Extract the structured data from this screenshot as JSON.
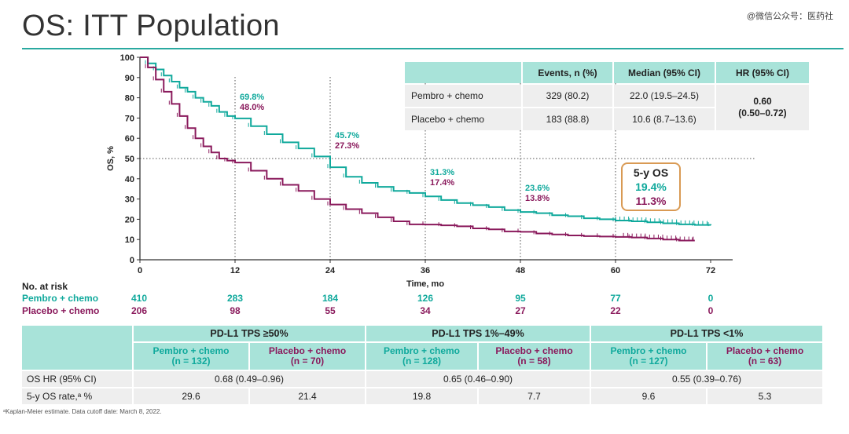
{
  "page": {
    "title": "OS: ITT Population",
    "watermark": "@微信公众号：医药社",
    "footnote": "ᵃKaplan-Meier estimate.  Data cutoff date: March 8, 2022."
  },
  "chart_data": {
    "type": "line",
    "xlabel": "Time, mo",
    "ylabel": "OS, %",
    "xlim": [
      0,
      72
    ],
    "ylim": [
      0,
      100
    ],
    "xticks": [
      0,
      12,
      24,
      36,
      48,
      60,
      72
    ],
    "yticks": [
      0,
      10,
      20,
      30,
      40,
      50,
      60,
      70,
      80,
      90,
      100
    ],
    "reference_line_y": 50,
    "series": [
      {
        "name": "Pembro + chemo",
        "color": "#10a99c",
        "x": [
          0,
          1,
          2,
          3,
          4,
          5,
          6,
          7,
          8,
          9,
          10,
          11,
          12,
          14,
          16,
          18,
          20,
          22,
          24,
          26,
          28,
          30,
          32,
          34,
          36,
          38,
          40,
          42,
          44,
          46,
          48,
          50,
          52,
          54,
          56,
          58,
          60,
          62,
          64,
          66,
          68,
          70,
          72
        ],
        "y": [
          100,
          97,
          94,
          91,
          88,
          85,
          83,
          80,
          78,
          76,
          73,
          71,
          69.8,
          66,
          62,
          58,
          55,
          51,
          45.7,
          41,
          38,
          36,
          34,
          33,
          31.3,
          29.5,
          28,
          27,
          26,
          24.5,
          23.6,
          23,
          22,
          21.5,
          20.5,
          20,
          19.4,
          19,
          18.5,
          18,
          17.5,
          17.2,
          17
        ],
        "labels": [
          {
            "x": 12,
            "text": "69.8%"
          },
          {
            "x": 24,
            "text": "45.7%"
          },
          {
            "x": 36,
            "text": "31.3%"
          },
          {
            "x": 48,
            "text": "23.6%"
          }
        ]
      },
      {
        "name": "Placebo + chemo",
        "color": "#8a1a5c",
        "x": [
          0,
          1,
          2,
          3,
          4,
          5,
          6,
          7,
          8,
          9,
          10,
          11,
          12,
          14,
          16,
          18,
          20,
          22,
          24,
          26,
          28,
          30,
          32,
          34,
          36,
          38,
          40,
          42,
          44,
          46,
          48,
          50,
          52,
          54,
          56,
          58,
          60,
          62,
          64,
          66,
          68,
          70
        ],
        "y": [
          100,
          95,
          89,
          83,
          77,
          71,
          65,
          60,
          56,
          53,
          50,
          49,
          48,
          44,
          40,
          37,
          34,
          30,
          27.3,
          25,
          23,
          21,
          19,
          17.5,
          17.4,
          17,
          16.5,
          15.5,
          15,
          14,
          13.8,
          13,
          12.5,
          12,
          11.7,
          11.5,
          11.3,
          11,
          10.5,
          10,
          9.5,
          9.5
        ],
        "labels": [
          {
            "x": 12,
            "text": "48.0%"
          },
          {
            "x": 24,
            "text": "27.3%"
          },
          {
            "x": 36,
            "text": "17.4%"
          },
          {
            "x": 48,
            "text": "13.8%"
          }
        ]
      }
    ],
    "annotation": {
      "title": "5-y OS",
      "pembro": "19.4%",
      "placebo": "11.3%"
    }
  },
  "summary_table": {
    "headers": [
      "",
      "Events, n (%)",
      "Median (95% CI)",
      "HR (95% CI)"
    ],
    "rows": [
      {
        "label": "Pembro + chemo",
        "events": "329 (80.2)",
        "median": "22.0 (19.5–24.5)"
      },
      {
        "label": "Placebo + chemo",
        "events": "183 (88.8)",
        "median": "10.6 (8.7–13.6)"
      }
    ],
    "hr": "0.60",
    "hr_ci": "(0.50–0.72)"
  },
  "risk": {
    "title": "No. at risk",
    "times": [
      0,
      12,
      24,
      36,
      48,
      60,
      72
    ],
    "pembro": {
      "label": "Pembro + chemo",
      "values": [
        "410",
        "283",
        "184",
        "126",
        "95",
        "77",
        "0"
      ]
    },
    "placebo": {
      "label": "Placebo + chemo",
      "values": [
        "206",
        "98",
        "55",
        "34",
        "27",
        "22",
        "0"
      ]
    }
  },
  "subgroup_table": {
    "groups": [
      "PD-L1 TPS ≥50%",
      "PD-L1 TPS 1%–49%",
      "PD-L1 TPS <1%"
    ],
    "arms": [
      {
        "name": "Pembro + chemo",
        "n": "(n = 132)"
      },
      {
        "name": "Placebo + chemo",
        "n": "(n = 70)"
      },
      {
        "name": "Pembro + chemo",
        "n": "(n = 128)"
      },
      {
        "name": "Placebo + chemo",
        "n": "(n = 58)"
      },
      {
        "name": "Pembro + chemo",
        "n": "(n = 127)"
      },
      {
        "name": "Placebo + chemo",
        "n": "(n = 63)"
      }
    ],
    "hr_label": "OS HR (95% CI)",
    "hr_values": [
      "0.68 (0.49–0.96)",
      "0.65 (0.46–0.90)",
      "0.55 (0.39–0.76)"
    ],
    "rate_label": "5-y OS rate,ᵃ %",
    "rate_values": [
      "29.6",
      "21.4",
      "19.8",
      "7.7",
      "9.6",
      "5.3"
    ]
  }
}
